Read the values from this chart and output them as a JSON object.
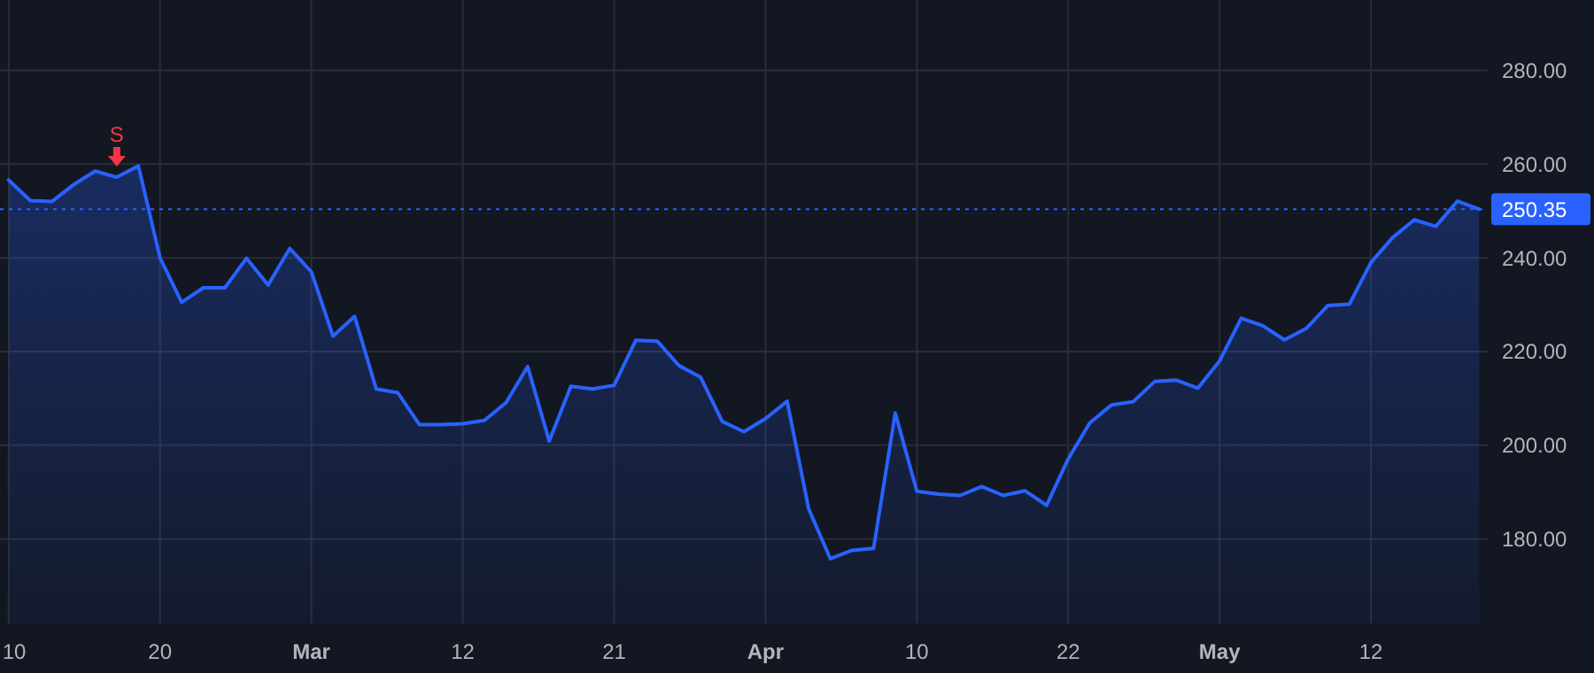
{
  "chart_data": {
    "type": "area",
    "categories": [
      "10",
      null,
      null,
      null,
      null,
      null,
      null,
      "20",
      null,
      null,
      null,
      null,
      null,
      null,
      "Mar",
      null,
      null,
      null,
      null,
      null,
      null,
      "12",
      null,
      null,
      null,
      null,
      null,
      null,
      "21",
      null,
      null,
      null,
      null,
      null,
      null,
      "Apr",
      null,
      null,
      null,
      null,
      null,
      null,
      "10",
      null,
      null,
      null,
      null,
      null,
      null,
      "22",
      null,
      null,
      null,
      null,
      null,
      null,
      "May",
      null,
      null,
      null,
      null,
      null,
      null,
      "12",
      null,
      null,
      null,
      null,
      null
    ],
    "series": [
      {
        "color": "#2962ff",
        "values": [
          256.6,
          252.2,
          252.0,
          255.6,
          258.5,
          257.2,
          259.6,
          240.0,
          230.5,
          233.6,
          233.6,
          239.9,
          234.2,
          242.0,
          237.0,
          223.3,
          227.5,
          212.0,
          211.2,
          204.4,
          204.4,
          204.6,
          205.3,
          209.1,
          216.8,
          200.9,
          212.6,
          212.0,
          212.8,
          222.4,
          222.2,
          217.0,
          214.5,
          205.1,
          202.9,
          205.7,
          209.4,
          186.4,
          175.8,
          177.6,
          178.0,
          206.9,
          190.2,
          189.6,
          189.3,
          191.2,
          189.3,
          190.3,
          187.2,
          197.1,
          204.8,
          208.6,
          209.3,
          213.6,
          213.9,
          212.2,
          218.0,
          227.1,
          225.5,
          222.5,
          224.9,
          229.8,
          230.1,
          239.0,
          244.3,
          248.1,
          246.7,
          252.1,
          250.4
        ]
      }
    ],
    "ylim": [
      162,
      295
    ],
    "yticks": [
      {
        "value": 180,
        "label": "180.00"
      },
      {
        "value": 200,
        "label": "200.00"
      },
      {
        "value": 220,
        "label": "220.00"
      },
      {
        "value": 240,
        "label": "240.00"
      },
      {
        "value": 260,
        "label": "260.00"
      },
      {
        "value": 280,
        "label": "280.00"
      }
    ],
    "ref_lines": [
      {
        "axis": "y",
        "value": 250.35,
        "label": "250.35",
        "color": "#2962ff",
        "line_style": "dotted"
      }
    ],
    "annotations": [
      {
        "text": "S",
        "y": 257.2
      }
    ],
    "grid": true,
    "marker": "none",
    "line_style": "solid"
  }
}
